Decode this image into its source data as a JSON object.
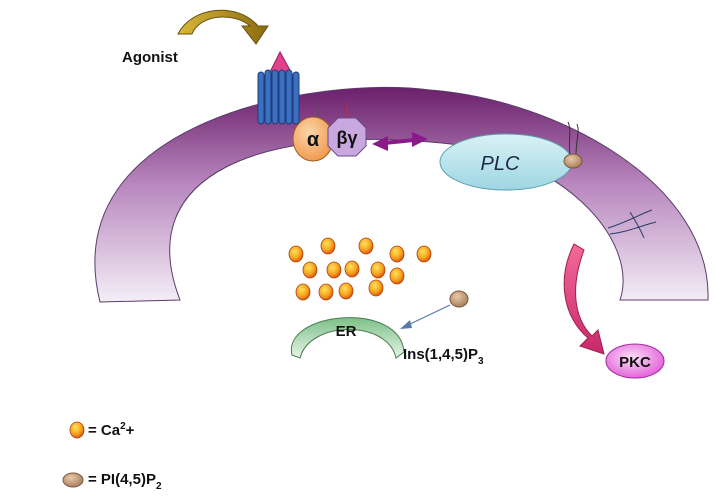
{
  "labels": {
    "agonist": "Agonist",
    "alpha": "α",
    "beta_gamma": "βγ",
    "plc": "PLC",
    "er": "ER",
    "ip3": "Ins(1,4,5)P",
    "ip3_sub": "3",
    "pkc": "PKC"
  },
  "legend": [
    {
      "symbol": "calcium-ion",
      "text": "= Ca",
      "sup": "2",
      "suffix": "+"
    },
    {
      "symbol": "pip2-molecule",
      "text": "= PI(4,5)P",
      "sub": "2",
      "suffix": ""
    }
  ],
  "colors": {
    "membrane_dark": "#6b1f6b",
    "membrane_light": "#f1e9f3",
    "receptor": "#3b6fbf",
    "agonist_arrow": "#b09020",
    "alpha_fill": "#f3a35a",
    "beta_gamma_fill": "#c9a8e0",
    "double_arrow": "#8a1a8a",
    "plc_fill": "#bfe6ee",
    "pkc_fill": "#e86ae0",
    "pkc_arrow": "#e0447a",
    "ca_outer": "#e06a10",
    "ca_inner": "#ffd84a",
    "pip_fill": "#c49a76",
    "er_fill": "#9fd4a4"
  }
}
